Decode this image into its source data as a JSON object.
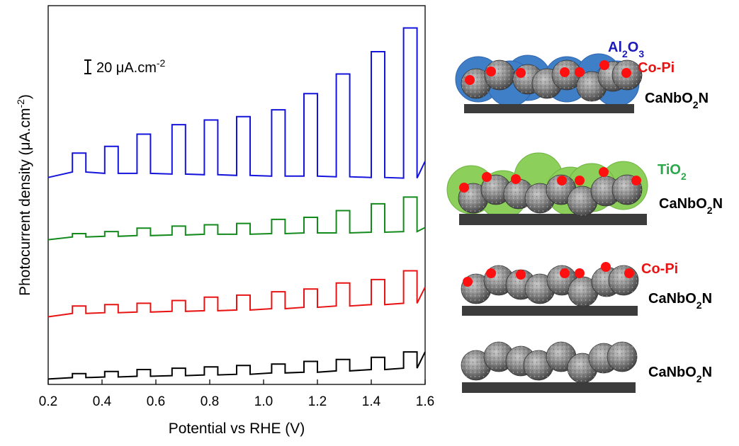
{
  "chart_data": {
    "type": "line",
    "x_label": "Potential vs RHE (V)",
    "y_label_parts": [
      "Photocurrent density (μA.cm",
      "-2",
      ")"
    ],
    "scale_bar": {
      "value": 20,
      "label_parts": [
        "20 μA.cm",
        "-2"
      ]
    },
    "xlim": [
      0.2,
      1.6
    ],
    "xticks": [
      0.2,
      0.4,
      0.6,
      0.8,
      {
        "value": 1,
        "label": "1.0"
      },
      1.2,
      1.4,
      1.6
    ],
    "ylim": [
      0,
      560
    ],
    "x": [
      0.2,
      0.29,
      0.29,
      0.34,
      0.34,
      0.41,
      0.41,
      0.46,
      0.46,
      0.53,
      0.53,
      0.58,
      0.58,
      0.66,
      0.66,
      0.71,
      0.71,
      0.78,
      0.78,
      0.83,
      0.83,
      0.9,
      0.9,
      0.95,
      0.95,
      1.03,
      1.03,
      1.08,
      1.08,
      1.15,
      1.15,
      1.2,
      1.2,
      1.27,
      1.27,
      1.32,
      1.32,
      1.4,
      1.4,
      1.45,
      1.45,
      1.52,
      1.52,
      1.57,
      1.57,
      1.6
    ],
    "series": [
      {
        "color": "#1414dc",
        "values": [
          306,
          314,
          342,
          342,
          314,
          312,
          352,
          352,
          312,
          312,
          370,
          370,
          312,
          311,
          384,
          384,
          311,
          310,
          391,
          391,
          310,
          309,
          396,
          396,
          309,
          308,
          406,
          406,
          308,
          308,
          430,
          430,
          308,
          307,
          459,
          459,
          307,
          306,
          492,
          492,
          306,
          305,
          527,
          527,
          305,
          330
        ]
      },
      {
        "color": "#138a1c",
        "values": [
          214,
          218,
          223,
          223,
          218,
          219,
          226,
          226,
          219,
          220,
          231,
          231,
          220,
          221,
          234,
          234,
          221,
          222,
          236,
          236,
          222,
          222,
          238,
          238,
          222,
          223,
          244,
          244,
          223,
          224,
          247,
          247,
          224,
          224,
          257,
          257,
          224,
          225,
          267,
          267,
          225,
          226,
          277,
          277,
          226,
          232
        ]
      },
      {
        "color": "#e81414",
        "values": [
          100,
          105,
          116,
          116,
          105,
          106,
          118,
          118,
          106,
          107,
          120,
          120,
          107,
          108,
          124,
          124,
          108,
          109,
          129,
          129,
          109,
          110,
          132,
          132,
          110,
          112,
          137,
          137,
          112,
          114,
          141,
          141,
          114,
          116,
          150,
          150,
          116,
          118,
          155,
          155,
          118,
          120,
          168,
          168,
          120,
          144
        ]
      },
      {
        "color": "#000000",
        "values": [
          8,
          10,
          16,
          16,
          10,
          11,
          19,
          19,
          11,
          12,
          22,
          22,
          12,
          13,
          24,
          24,
          13,
          14,
          26,
          26,
          14,
          15,
          28,
          28,
          15,
          17,
          30,
          30,
          17,
          18,
          34,
          34,
          18,
          20,
          37,
          37,
          20,
          22,
          40,
          40,
          22,
          24,
          48,
          48,
          24,
          48
        ]
      }
    ]
  },
  "schematic": {
    "panels": [
      {
        "labels": [
          {
            "parts": [
              "Al",
              "2",
              "O",
              "3"
            ],
            "color": "#1a1ab8"
          },
          {
            "parts": [
              "Co-Pi"
            ],
            "color": "#e81414"
          },
          {
            "parts": [
              "CaNbO",
              "2",
              "N"
            ],
            "color": "#000000"
          }
        ]
      },
      {
        "labels": [
          {
            "parts": [
              "TiO",
              "2"
            ],
            "color": "#2aa84a"
          },
          {
            "parts": [
              "CaNbO",
              "2",
              "N"
            ],
            "color": "#000000"
          }
        ]
      },
      {
        "labels": [
          {
            "parts": [
              "Co-Pi"
            ],
            "color": "#e81414"
          },
          {
            "parts": [
              "CaNbO",
              "2",
              "N"
            ],
            "color": "#000000"
          }
        ]
      },
      {
        "labels": [
          {
            "parts": [
              "CaNbO",
              "2",
              "N"
            ],
            "color": "#000000"
          }
        ]
      }
    ]
  }
}
